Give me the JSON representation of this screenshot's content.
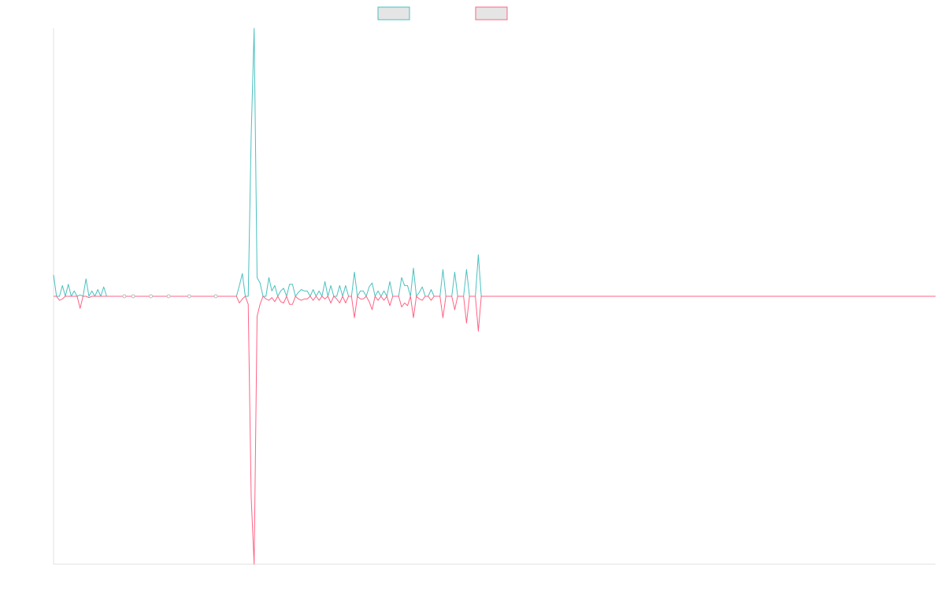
{
  "chart_data": {
    "type": "line",
    "title": "",
    "xlabel": "",
    "ylabel": "",
    "grid": false,
    "legend_position": "top-center",
    "x_count": 300,
    "ylim": [
      -1,
      1
    ],
    "series": [
      {
        "color": "#4bc0c0",
        "fill": "#e5e5e5",
        "sparse": [
          [
            0,
            0.08
          ],
          [
            1,
            0.0
          ],
          [
            2,
            0.0
          ],
          [
            3,
            0.04
          ],
          [
            4,
            0.0
          ],
          [
            5,
            0.045
          ],
          [
            6,
            0.0
          ],
          [
            7,
            0.02
          ],
          [
            8,
            0.0
          ],
          [
            9,
            0.005
          ],
          [
            10,
            0.0
          ],
          [
            11,
            0.065
          ],
          [
            12,
            0.0
          ],
          [
            13,
            0.02
          ],
          [
            14,
            0.0
          ],
          [
            15,
            0.025
          ],
          [
            16,
            0.0
          ],
          [
            17,
            0.035
          ],
          [
            18,
            0.0
          ],
          [
            62,
            0.0
          ],
          [
            63,
            0.04
          ],
          [
            64,
            0.085
          ],
          [
            65,
            0.0
          ],
          [
            66,
            0.0
          ],
          [
            67,
            0.6
          ],
          [
            68,
            1.0
          ],
          [
            69,
            0.07
          ],
          [
            70,
            0.05
          ],
          [
            71,
            0.0
          ],
          [
            72,
            0.0
          ],
          [
            73,
            0.07
          ],
          [
            74,
            0.02
          ],
          [
            75,
            0.04
          ],
          [
            76,
            0.0
          ],
          [
            77,
            0.02
          ],
          [
            78,
            0.03
          ],
          [
            79,
            0.0
          ],
          [
            80,
            0.045
          ],
          [
            81,
            0.045
          ],
          [
            82,
            0.0
          ],
          [
            83,
            0.015
          ],
          [
            84,
            0.025
          ],
          [
            85,
            0.02
          ],
          [
            86,
            0.02
          ],
          [
            87,
            0.0
          ],
          [
            88,
            0.025
          ],
          [
            89,
            0.0
          ],
          [
            90,
            0.02
          ],
          [
            91,
            0.0
          ],
          [
            92,
            0.055
          ],
          [
            93,
            0.0
          ],
          [
            94,
            0.04
          ],
          [
            95,
            0.0
          ],
          [
            96,
            0.0
          ],
          [
            97,
            0.04
          ],
          [
            98,
            0.0
          ],
          [
            99,
            0.04
          ],
          [
            100,
            0.0
          ],
          [
            101,
            0.0
          ],
          [
            102,
            0.09
          ],
          [
            103,
            0.0
          ],
          [
            104,
            0.02
          ],
          [
            105,
            0.02
          ],
          [
            106,
            0.0
          ],
          [
            107,
            0.035
          ],
          [
            108,
            0.05
          ],
          [
            109,
            0.0
          ],
          [
            110,
            0.02
          ],
          [
            111,
            0.0
          ],
          [
            112,
            0.02
          ],
          [
            113,
            0.0
          ],
          [
            114,
            0.055
          ],
          [
            115,
            0.0
          ],
          [
            116,
            0.0
          ],
          [
            117,
            0.0
          ],
          [
            118,
            0.07
          ],
          [
            119,
            0.04
          ],
          [
            120,
            0.04
          ],
          [
            121,
            0.0
          ],
          [
            122,
            0.105
          ],
          [
            123,
            0.0
          ],
          [
            124,
            0.015
          ],
          [
            125,
            0.035
          ],
          [
            126,
            0.0
          ],
          [
            127,
            0.0
          ],
          [
            128,
            0.025
          ],
          [
            129,
            0.0
          ],
          [
            130,
            0.0
          ],
          [
            131,
            0.0
          ],
          [
            132,
            0.1
          ],
          [
            133,
            0.0
          ],
          [
            134,
            0.0
          ],
          [
            135,
            0.0
          ],
          [
            136,
            0.09
          ],
          [
            137,
            0.0
          ],
          [
            138,
            0.0
          ],
          [
            139,
            0.0
          ],
          [
            140,
            0.1
          ],
          [
            141,
            0.0
          ],
          [
            142,
            0.0
          ],
          [
            143,
            0.0
          ],
          [
            144,
            0.155
          ],
          [
            145,
            0.0
          ]
        ]
      },
      {
        "color": "#ff6384",
        "fill": "#e5e5e5",
        "sparse": [
          [
            0,
            0.0
          ],
          [
            1,
            0.0
          ],
          [
            2,
            -0.015
          ],
          [
            3,
            -0.01
          ],
          [
            4,
            0.0
          ],
          [
            5,
            0.0
          ],
          [
            6,
            0.0
          ],
          [
            7,
            0.0
          ],
          [
            8,
            0.0
          ],
          [
            9,
            -0.045
          ],
          [
            10,
            0.0
          ],
          [
            11,
            0.0
          ],
          [
            12,
            -0.005
          ],
          [
            13,
            0.0
          ],
          [
            14,
            0.0
          ],
          [
            15,
            0.0
          ],
          [
            16,
            0.0
          ],
          [
            62,
            0.0
          ],
          [
            63,
            -0.025
          ],
          [
            64,
            -0.01
          ],
          [
            65,
            0.0
          ],
          [
            66,
            -0.03
          ],
          [
            67,
            -0.75
          ],
          [
            68,
            -1.0
          ],
          [
            69,
            -0.075
          ],
          [
            70,
            -0.03
          ],
          [
            71,
            0.0
          ],
          [
            72,
            -0.01
          ],
          [
            73,
            -0.015
          ],
          [
            74,
            -0.005
          ],
          [
            75,
            -0.02
          ],
          [
            76,
            0.0
          ],
          [
            77,
            -0.02
          ],
          [
            78,
            -0.025
          ],
          [
            79,
            0.0
          ],
          [
            80,
            -0.03
          ],
          [
            81,
            -0.03
          ],
          [
            82,
            0.0
          ],
          [
            83,
            -0.01
          ],
          [
            84,
            -0.015
          ],
          [
            85,
            -0.01
          ],
          [
            86,
            -0.01
          ],
          [
            87,
            0.0
          ],
          [
            88,
            -0.015
          ],
          [
            89,
            0.0
          ],
          [
            90,
            -0.015
          ],
          [
            91,
            0.0
          ],
          [
            92,
            -0.01
          ],
          [
            93,
            0.0
          ],
          [
            94,
            -0.025
          ],
          [
            95,
            0.0
          ],
          [
            96,
            -0.01
          ],
          [
            97,
            -0.025
          ],
          [
            98,
            0.0
          ],
          [
            99,
            -0.025
          ],
          [
            100,
            0.0
          ],
          [
            101,
            0.0
          ],
          [
            102,
            -0.08
          ],
          [
            103,
            0.0
          ],
          [
            104,
            -0.01
          ],
          [
            105,
            -0.01
          ],
          [
            106,
            0.0
          ],
          [
            107,
            -0.02
          ],
          [
            108,
            -0.05
          ],
          [
            109,
            0.0
          ],
          [
            110,
            -0.015
          ],
          [
            111,
            0.0
          ],
          [
            112,
            -0.015
          ],
          [
            113,
            0.0
          ],
          [
            114,
            -0.035
          ],
          [
            115,
            0.0
          ],
          [
            116,
            0.0
          ],
          [
            117,
            0.0
          ],
          [
            118,
            -0.04
          ],
          [
            119,
            -0.025
          ],
          [
            120,
            -0.035
          ],
          [
            121,
            0.0
          ],
          [
            122,
            -0.08
          ],
          [
            123,
            0.0
          ],
          [
            124,
            -0.01
          ],
          [
            125,
            -0.015
          ],
          [
            126,
            0.0
          ],
          [
            127,
            0.0
          ],
          [
            128,
            -0.015
          ],
          [
            129,
            0.0
          ],
          [
            130,
            0.0
          ],
          [
            131,
            0.0
          ],
          [
            132,
            -0.08
          ],
          [
            133,
            0.0
          ],
          [
            134,
            0.0
          ],
          [
            135,
            0.0
          ],
          [
            136,
            -0.05
          ],
          [
            137,
            0.0
          ],
          [
            138,
            0.0
          ],
          [
            139,
            0.0
          ],
          [
            140,
            -0.1
          ],
          [
            141,
            0.0
          ],
          [
            142,
            0.0
          ],
          [
            143,
            0.0
          ],
          [
            144,
            -0.13
          ],
          [
            145,
            0.0
          ]
        ]
      }
    ],
    "markers": [
      24,
      27,
      33,
      39,
      46,
      55
    ]
  }
}
